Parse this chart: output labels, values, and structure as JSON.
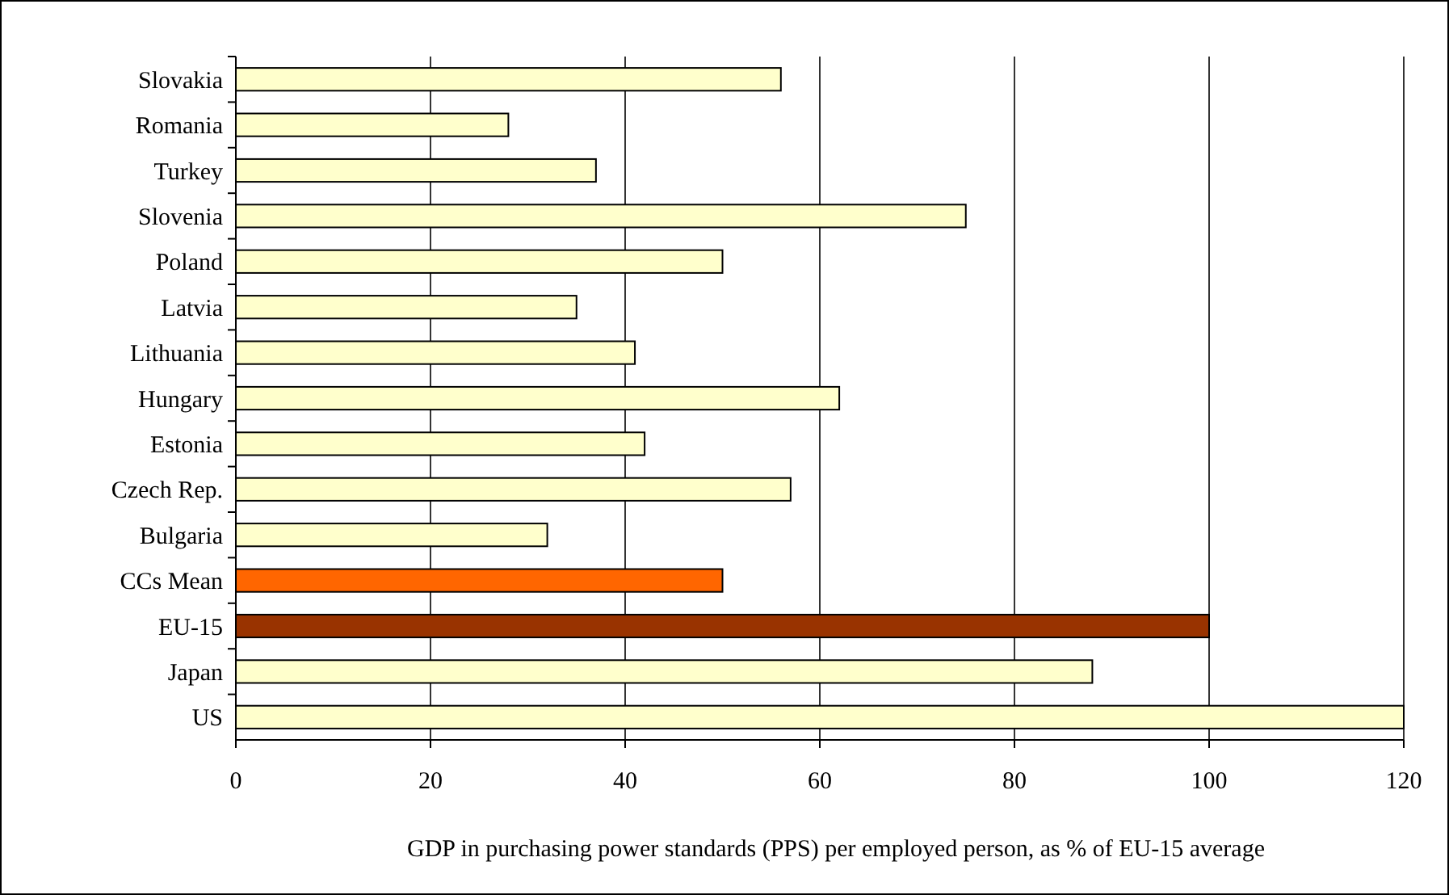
{
  "chart_data": {
    "type": "bar",
    "orientation": "horizontal",
    "xlabel": "GDP in purchasing power standards (PPS) per employed person, as % of EU-15 average",
    "categories": [
      "Slovakia",
      "Romania",
      "Turkey",
      "Slovenia",
      "Poland",
      "Latvia",
      "Lithuania",
      "Hungary",
      "Estonia",
      "Czech Rep.",
      "Bulgaria",
      "CCs Mean",
      "EU-15",
      "Japan",
      "US"
    ],
    "values": [
      56,
      28,
      37,
      75,
      50,
      35,
      41,
      62,
      42,
      57,
      32,
      50,
      100,
      88,
      120
    ],
    "colors": [
      "#ffffcc",
      "#ffffcc",
      "#ffffcc",
      "#ffffcc",
      "#ffffcc",
      "#ffffcc",
      "#ffffcc",
      "#ffffcc",
      "#ffffcc",
      "#ffffcc",
      "#ffffcc",
      "#ff6600",
      "#993300",
      "#ffffcc",
      "#ffffcc"
    ],
    "xlim": [
      0,
      120
    ],
    "xticks": [
      0,
      20,
      40,
      60,
      80,
      100,
      120
    ],
    "grid": "x"
  }
}
